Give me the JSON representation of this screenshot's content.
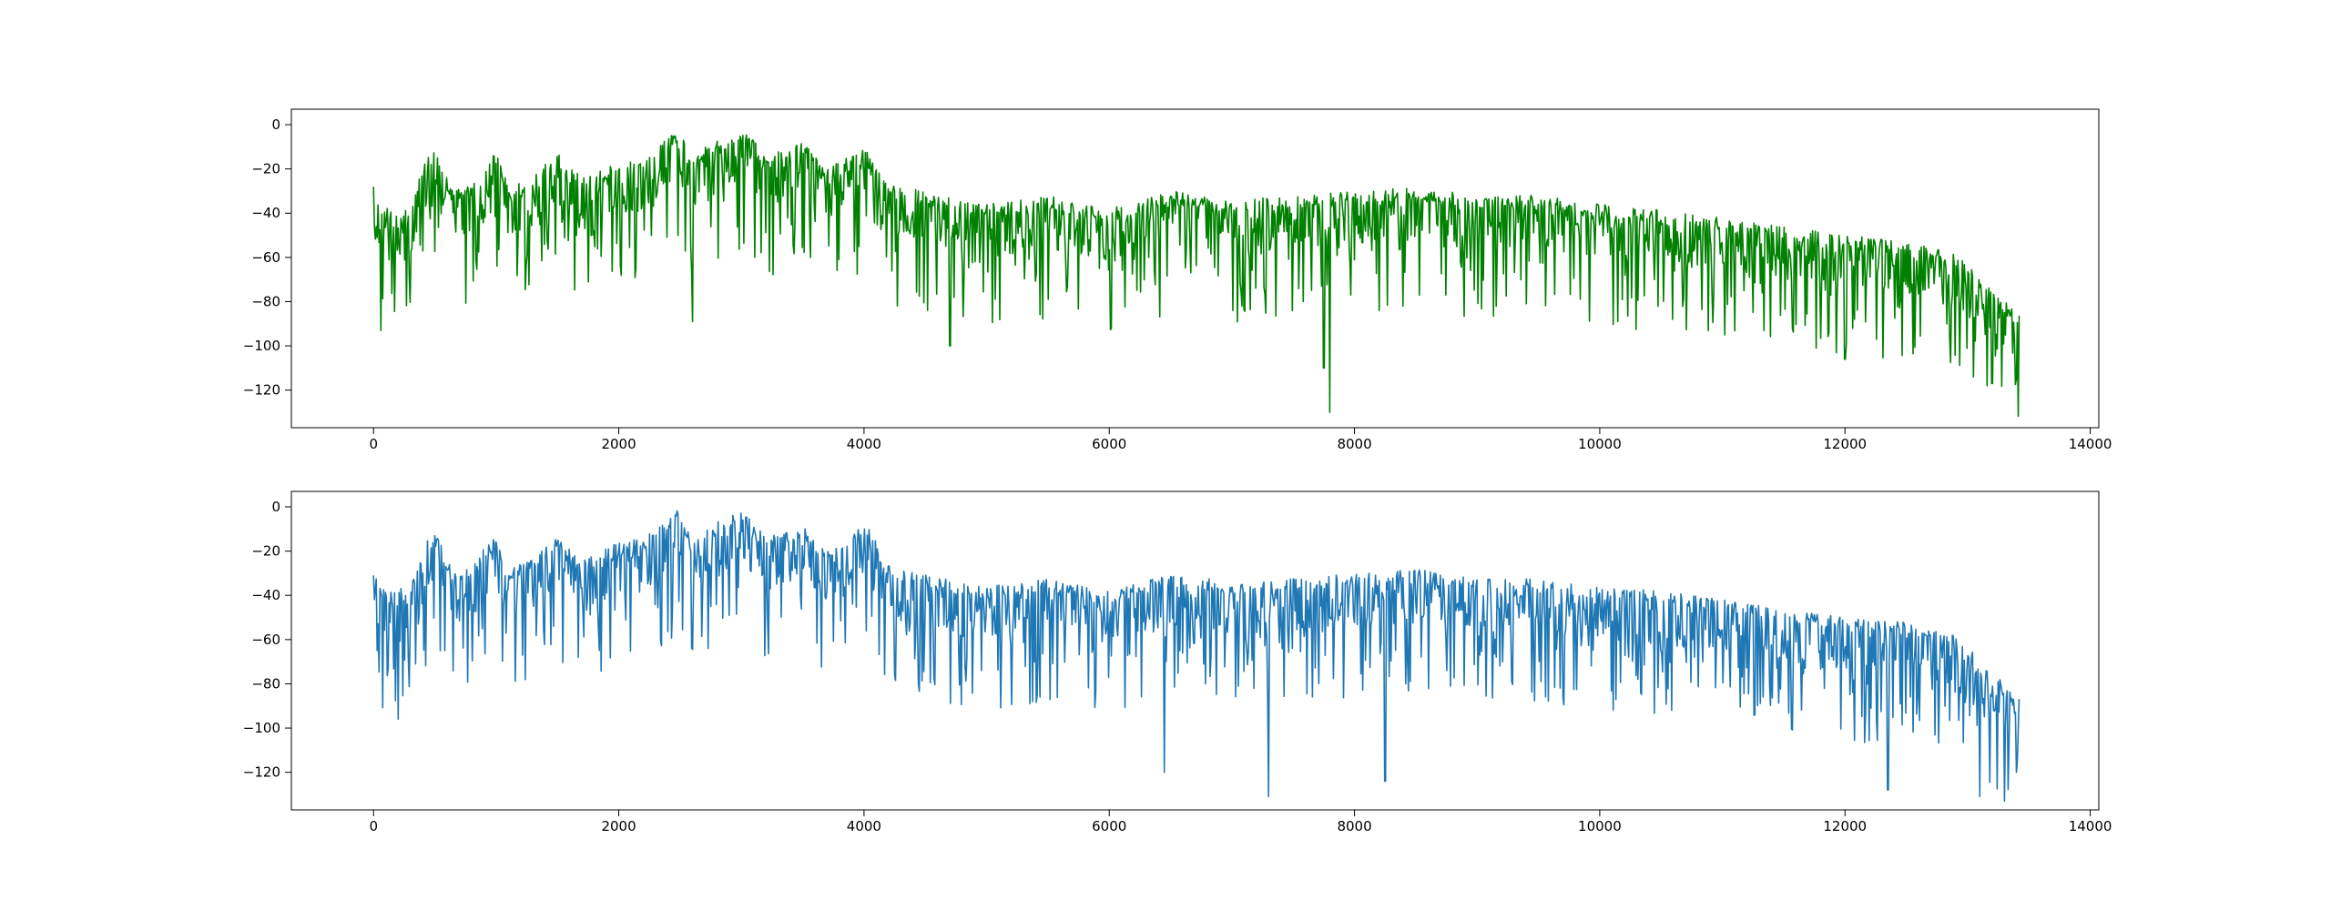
{
  "chart_data": [
    {
      "type": "line",
      "title": "",
      "xlabel": "",
      "ylabel": "",
      "xlim": [
        -670,
        14070
      ],
      "ylim": [
        -137,
        7
      ],
      "xticks": [
        0,
        2000,
        4000,
        6000,
        8000,
        10000,
        12000,
        14000
      ],
      "xtick_labels": [
        "0",
        "2000",
        "4000",
        "6000",
        "8000",
        "10000",
        "12000",
        "14000"
      ],
      "yticks": [
        0,
        -20,
        -40,
        -60,
        -80,
        -100,
        -120
      ],
      "ytick_labels": [
        "0",
        "−20",
        "−40",
        "−60",
        "−80",
        "−100",
        "−120"
      ],
      "grid": false,
      "legend": false,
      "color": "#008000",
      "x_range": [
        0,
        13420
      ],
      "envelope_upper": [
        [
          0,
          -28
        ],
        [
          100,
          -38
        ],
        [
          300,
          -36
        ],
        [
          400,
          -18
        ],
        [
          500,
          -10
        ],
        [
          650,
          -30
        ],
        [
          800,
          -26
        ],
        [
          1000,
          -12
        ],
        [
          1100,
          -28
        ],
        [
          1300,
          -24
        ],
        [
          1500,
          -12
        ],
        [
          1700,
          -24
        ],
        [
          2000,
          -16
        ],
        [
          2200,
          -14
        ],
        [
          2400,
          -6
        ],
        [
          2500,
          0
        ],
        [
          2600,
          -16
        ],
        [
          2700,
          -10
        ],
        [
          2900,
          -4
        ],
        [
          3000,
          0
        ],
        [
          3200,
          -14
        ],
        [
          3500,
          -8
        ],
        [
          3700,
          -20
        ],
        [
          4000,
          -10
        ],
        [
          4200,
          -26
        ],
        [
          4600,
          -32
        ],
        [
          5000,
          -36
        ],
        [
          5500,
          -32
        ],
        [
          6000,
          -38
        ],
        [
          6500,
          -30
        ],
        [
          7000,
          -34
        ],
        [
          7500,
          -32
        ],
        [
          8000,
          -30
        ],
        [
          8500,
          -28
        ],
        [
          9000,
          -32
        ],
        [
          9500,
          -32
        ],
        [
          10000,
          -36
        ],
        [
          10500,
          -38
        ],
        [
          11000,
          -42
        ],
        [
          11500,
          -46
        ],
        [
          12000,
          -50
        ],
        [
          12500,
          -52
        ],
        [
          12900,
          -58
        ],
        [
          13200,
          -74
        ],
        [
          13420,
          -86
        ]
      ],
      "notable_minima": [
        [
          60,
          -93
        ],
        [
          2600,
          -89
        ],
        [
          4700,
          -100
        ],
        [
          7750,
          -110
        ],
        [
          7800,
          -130
        ],
        [
          12000,
          -106
        ],
        [
          13050,
          -114
        ],
        [
          13200,
          -117
        ],
        [
          13400,
          -115
        ]
      ]
    },
    {
      "type": "line",
      "title": "",
      "xlabel": "",
      "ylabel": "",
      "xlim": [
        -670,
        14070
      ],
      "ylim": [
        -137,
        7
      ],
      "xticks": [
        0,
        2000,
        4000,
        6000,
        8000,
        10000,
        12000,
        14000
      ],
      "xtick_labels": [
        "0",
        "2000",
        "4000",
        "6000",
        "8000",
        "10000",
        "12000",
        "14000"
      ],
      "yticks": [
        0,
        -20,
        -40,
        -60,
        -80,
        -100,
        -120
      ],
      "ytick_labels": [
        "0",
        "−20",
        "−40",
        "−60",
        "−80",
        "−100",
        "−120"
      ],
      "grid": false,
      "legend": false,
      "color": "#1f77b4",
      "x_range": [
        0,
        13420
      ],
      "envelope_upper": [
        [
          0,
          -28
        ],
        [
          100,
          -38
        ],
        [
          300,
          -36
        ],
        [
          400,
          -18
        ],
        [
          500,
          -10
        ],
        [
          650,
          -30
        ],
        [
          800,
          -26
        ],
        [
          1000,
          -12
        ],
        [
          1100,
          -28
        ],
        [
          1300,
          -24
        ],
        [
          1500,
          -12
        ],
        [
          1700,
          -24
        ],
        [
          2000,
          -16
        ],
        [
          2200,
          -14
        ],
        [
          2400,
          -6
        ],
        [
          2500,
          0
        ],
        [
          2600,
          -16
        ],
        [
          2700,
          -10
        ],
        [
          2900,
          -4
        ],
        [
          3000,
          0
        ],
        [
          3200,
          -14
        ],
        [
          3500,
          -8
        ],
        [
          3700,
          -20
        ],
        [
          4000,
          -6
        ],
        [
          4200,
          -26
        ],
        [
          4600,
          -32
        ],
        [
          5000,
          -36
        ],
        [
          5500,
          -32
        ],
        [
          6000,
          -38
        ],
        [
          6500,
          -30
        ],
        [
          7000,
          -34
        ],
        [
          7500,
          -32
        ],
        [
          8000,
          -30
        ],
        [
          8500,
          -28
        ],
        [
          9000,
          -32
        ],
        [
          9500,
          -32
        ],
        [
          10000,
          -36
        ],
        [
          10500,
          -38
        ],
        [
          11000,
          -42
        ],
        [
          11500,
          -46
        ],
        [
          12000,
          -50
        ],
        [
          12500,
          -52
        ],
        [
          12900,
          -58
        ],
        [
          13200,
          -74
        ],
        [
          13420,
          -86
        ]
      ],
      "notable_minima": [
        [
          200,
          -96
        ],
        [
          6450,
          -120
        ],
        [
          7300,
          -131
        ],
        [
          8250,
          -124
        ],
        [
          12350,
          -128
        ],
        [
          13100,
          -131
        ],
        [
          13400,
          -120
        ]
      ]
    }
  ]
}
